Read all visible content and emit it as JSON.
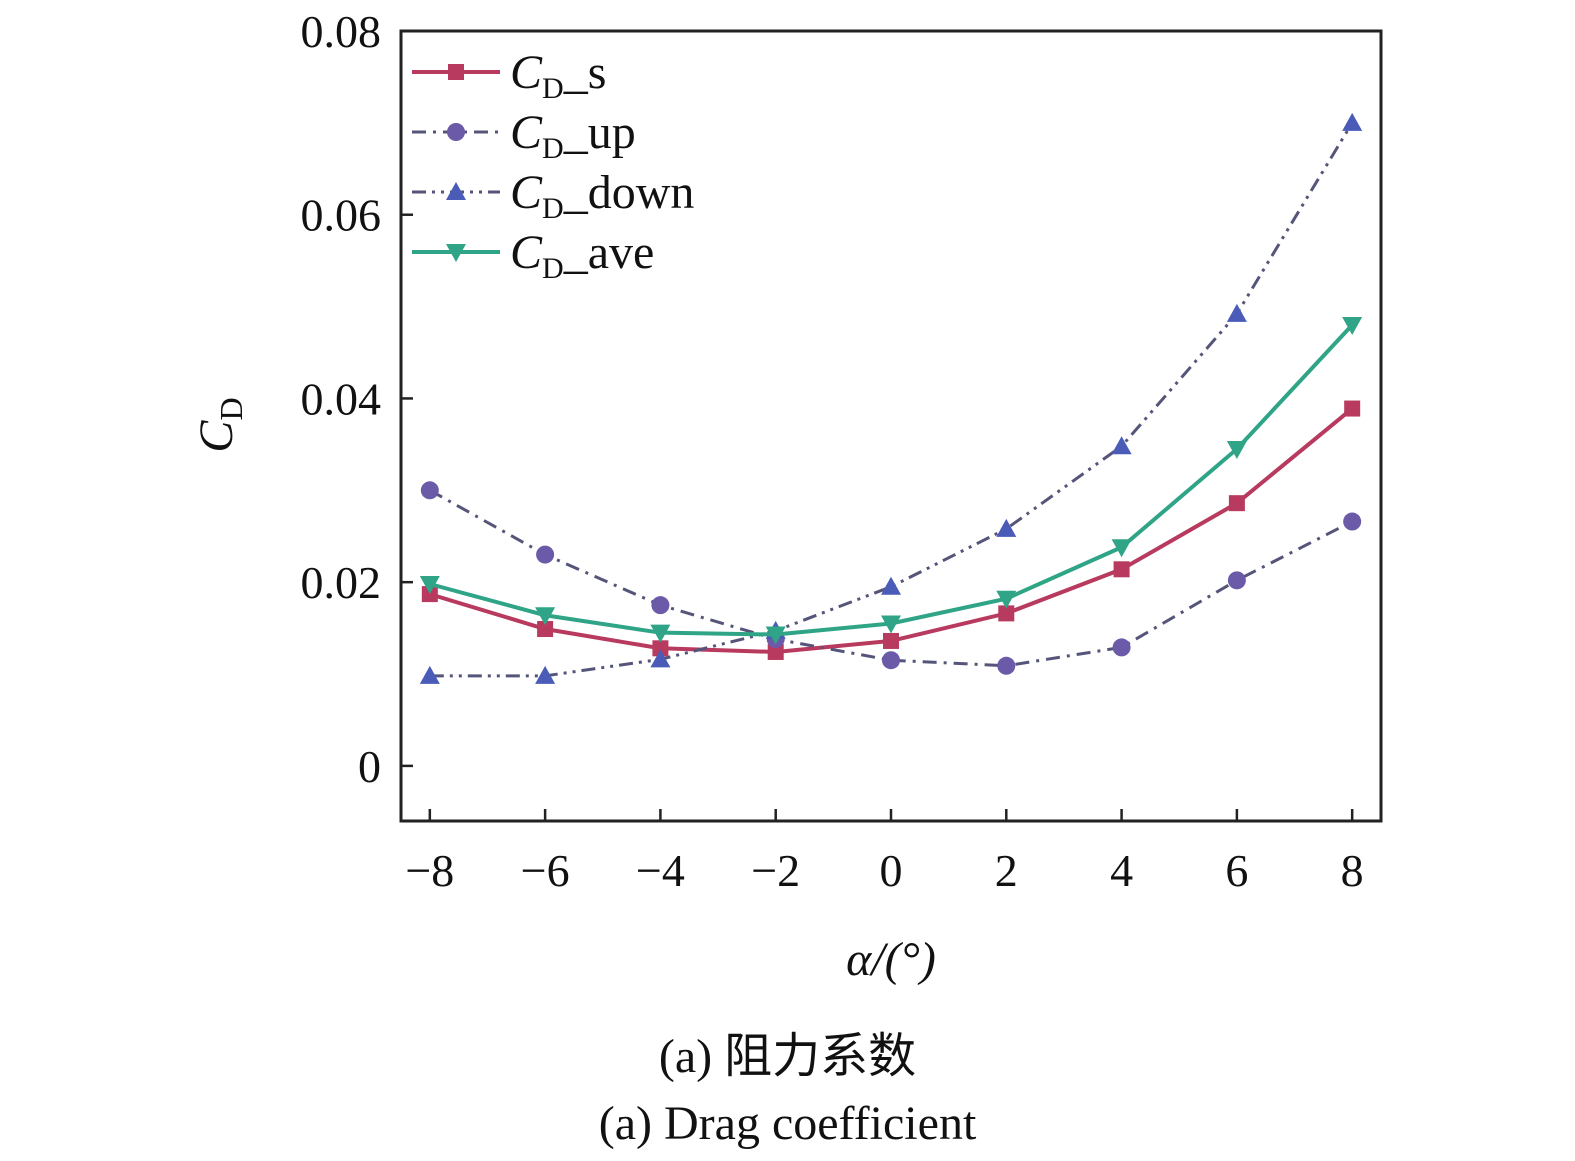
{
  "chart_data": {
    "type": "line",
    "x": [
      -8,
      -6,
      -4,
      -2,
      0,
      2,
      4,
      6,
      8
    ],
    "xticks": [
      "−8",
      "−6",
      "−4",
      "−2",
      "0",
      "2",
      "4",
      "6",
      "8"
    ],
    "yticks": [
      "0",
      "0.02",
      "0.04",
      "0.06",
      "0.08"
    ],
    "ytick_values": [
      0,
      0.02,
      0.04,
      0.06,
      0.08
    ],
    "xlim": [
      -8.5,
      8.5
    ],
    "ylim": [
      -0.006,
      0.08
    ],
    "xlabel": "α/(°)",
    "ylabel": "CD",
    "grid": false,
    "legend_position": "top-left",
    "series": [
      {
        "name": "CD_s",
        "legend_main": "C",
        "legend_sub": "D",
        "legend_suffix": "_s",
        "values": [
          0.0187,
          0.0149,
          0.0128,
          0.0124,
          0.0136,
          0.0166,
          0.0214,
          0.0286,
          0.0389
        ],
        "color": "#b83a5e",
        "marker": "square",
        "dash": "solid"
      },
      {
        "name": "CD_up",
        "legend_main": "C",
        "legend_sub": "D",
        "legend_suffix": "_up",
        "values": [
          0.03,
          0.023,
          0.0175,
          0.0138,
          0.0115,
          0.0109,
          0.0129,
          0.0202,
          0.0266
        ],
        "color": "#6b5aa8",
        "marker": "circle",
        "dash": "dashdot"
      },
      {
        "name": "CD_down",
        "legend_main": "C",
        "legend_sub": "D",
        "legend_suffix": "_down",
        "values": [
          0.0098,
          0.0098,
          0.0116,
          0.0147,
          0.0195,
          0.0258,
          0.0348,
          0.0492,
          0.07
        ],
        "color": "#4a5bb8",
        "marker": "triangle-up",
        "dash": "dashdotdot"
      },
      {
        "name": "CD_ave",
        "legend_main": "C",
        "legend_sub": "D",
        "legend_suffix": "_ave",
        "values": [
          0.0198,
          0.0164,
          0.0145,
          0.0143,
          0.0155,
          0.0182,
          0.0238,
          0.0345,
          0.048
        ],
        "color": "#2fa486",
        "marker": "triangle-down",
        "dash": "solid"
      }
    ]
  },
  "captions": {
    "zh": "(a) 阻力系数",
    "en": "(a) Drag coefficient"
  }
}
